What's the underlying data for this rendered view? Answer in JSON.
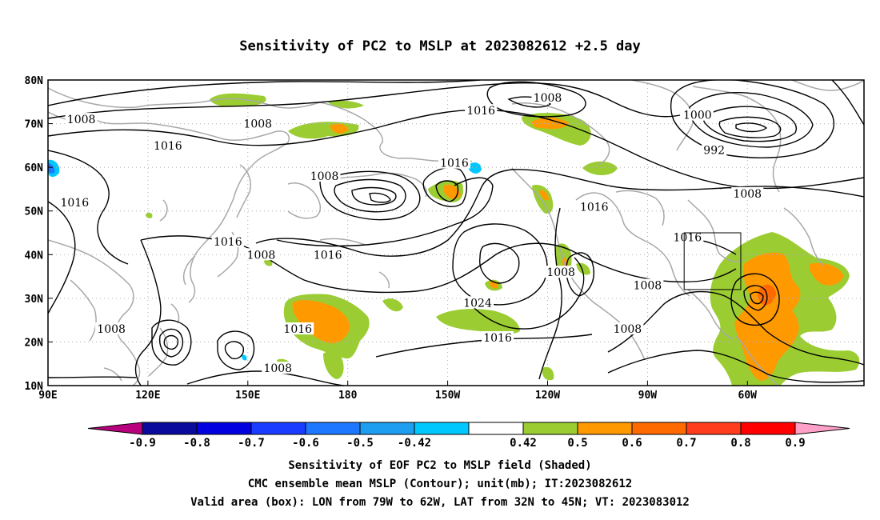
{
  "title": "Sensitivity of PC2 to MSLP at 2023082612 +2.5 day",
  "lat_labels": [
    "80N",
    "70N",
    "60N",
    "50N",
    "40N",
    "30N",
    "20N",
    "10N"
  ],
  "lon_labels": [
    "90E",
    "120E",
    "150E",
    "180",
    "150W",
    "120W",
    "90W",
    "60W"
  ],
  "colorbar": {
    "ticks": [
      "-0.9",
      "-0.8",
      "-0.7",
      "-0.6",
      "-0.5",
      "-0.42",
      "0.42",
      "0.5",
      "0.6",
      "0.7",
      "0.8",
      "0.9"
    ],
    "colors": [
      "#b8007c",
      "#0a0a9c",
      "#0000e0",
      "#1a3cff",
      "#1e78ff",
      "#1e9ef0",
      "#00c8ff",
      "#ffffff",
      "#9bcd32",
      "#ff9900",
      "#ff6a00",
      "#ff3c1e",
      "#ff0000",
      "#ffa0c8"
    ]
  },
  "contour_labels": [
    {
      "text": "1008",
      "lon": 100,
      "lat": 71
    },
    {
      "text": "1008",
      "lon": 153,
      "lat": 70
    },
    {
      "text": "1016",
      "lon": 126,
      "lat": 65
    },
    {
      "text": "1008",
      "lon": 173,
      "lat": 58
    },
    {
      "text": "1016",
      "lon": 98,
      "lat": 52
    },
    {
      "text": "1016",
      "lon": 144,
      "lat": 43
    },
    {
      "text": "1008",
      "lon": 154,
      "lat": 40
    },
    {
      "text": "1016",
      "lon": 174,
      "lat": 40
    },
    {
      "text": "1008",
      "lon": -120,
      "lat": 76
    },
    {
      "text": "1016",
      "lon": -140,
      "lat": 73
    },
    {
      "text": "1016",
      "lon": -148,
      "lat": 61
    },
    {
      "text": "1000",
      "lon": -75,
      "lat": 72
    },
    {
      "text": "992",
      "lon": -70,
      "lat": 64
    },
    {
      "text": "1008",
      "lon": -60,
      "lat": 54
    },
    {
      "text": "1016",
      "lon": -106,
      "lat": 51
    },
    {
      "text": "1016",
      "lon": -78,
      "lat": 44
    },
    {
      "text": "1008",
      "lon": -116,
      "lat": 36
    },
    {
      "text": "1024",
      "lon": -141,
      "lat": 29
    },
    {
      "text": "1008",
      "lon": -90,
      "lat": 33
    },
    {
      "text": "1008",
      "lon": -96,
      "lat": 23
    },
    {
      "text": "1016",
      "lon": 165,
      "lat": 23
    },
    {
      "text": "1016",
      "lon": -135,
      "lat": 21
    },
    {
      "text": "1008",
      "lon": 109,
      "lat": 23
    },
    {
      "text": "1008",
      "lon": 159,
      "lat": 14
    }
  ],
  "valid_box": {
    "lon_min": -79,
    "lon_max": -62,
    "lat_min": 32,
    "lat_max": 45
  },
  "footer": {
    "line1": "Sensitivity of EOF PC2 to MSLP field (Shaded)",
    "line2": "CMC ensemble mean MSLP (Contour); unit(mb); IT:2023082612",
    "line3": "Valid area (box): LON from 79W to 62W, LAT from 32N to 45N; VT: 2023083012"
  }
}
